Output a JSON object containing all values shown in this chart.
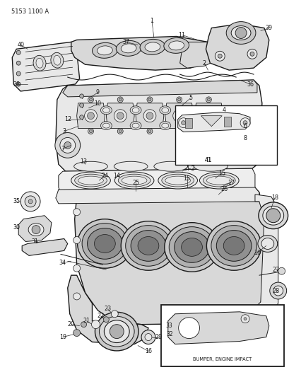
{
  "title": "5153 1100 A",
  "bg_color": "#f5f5f0",
  "line_color": "#1a1a1a",
  "fig_width": 4.1,
  "fig_height": 5.33,
  "dpi": 100,
  "label_fs": 6.0,
  "header_fs": 6.5
}
